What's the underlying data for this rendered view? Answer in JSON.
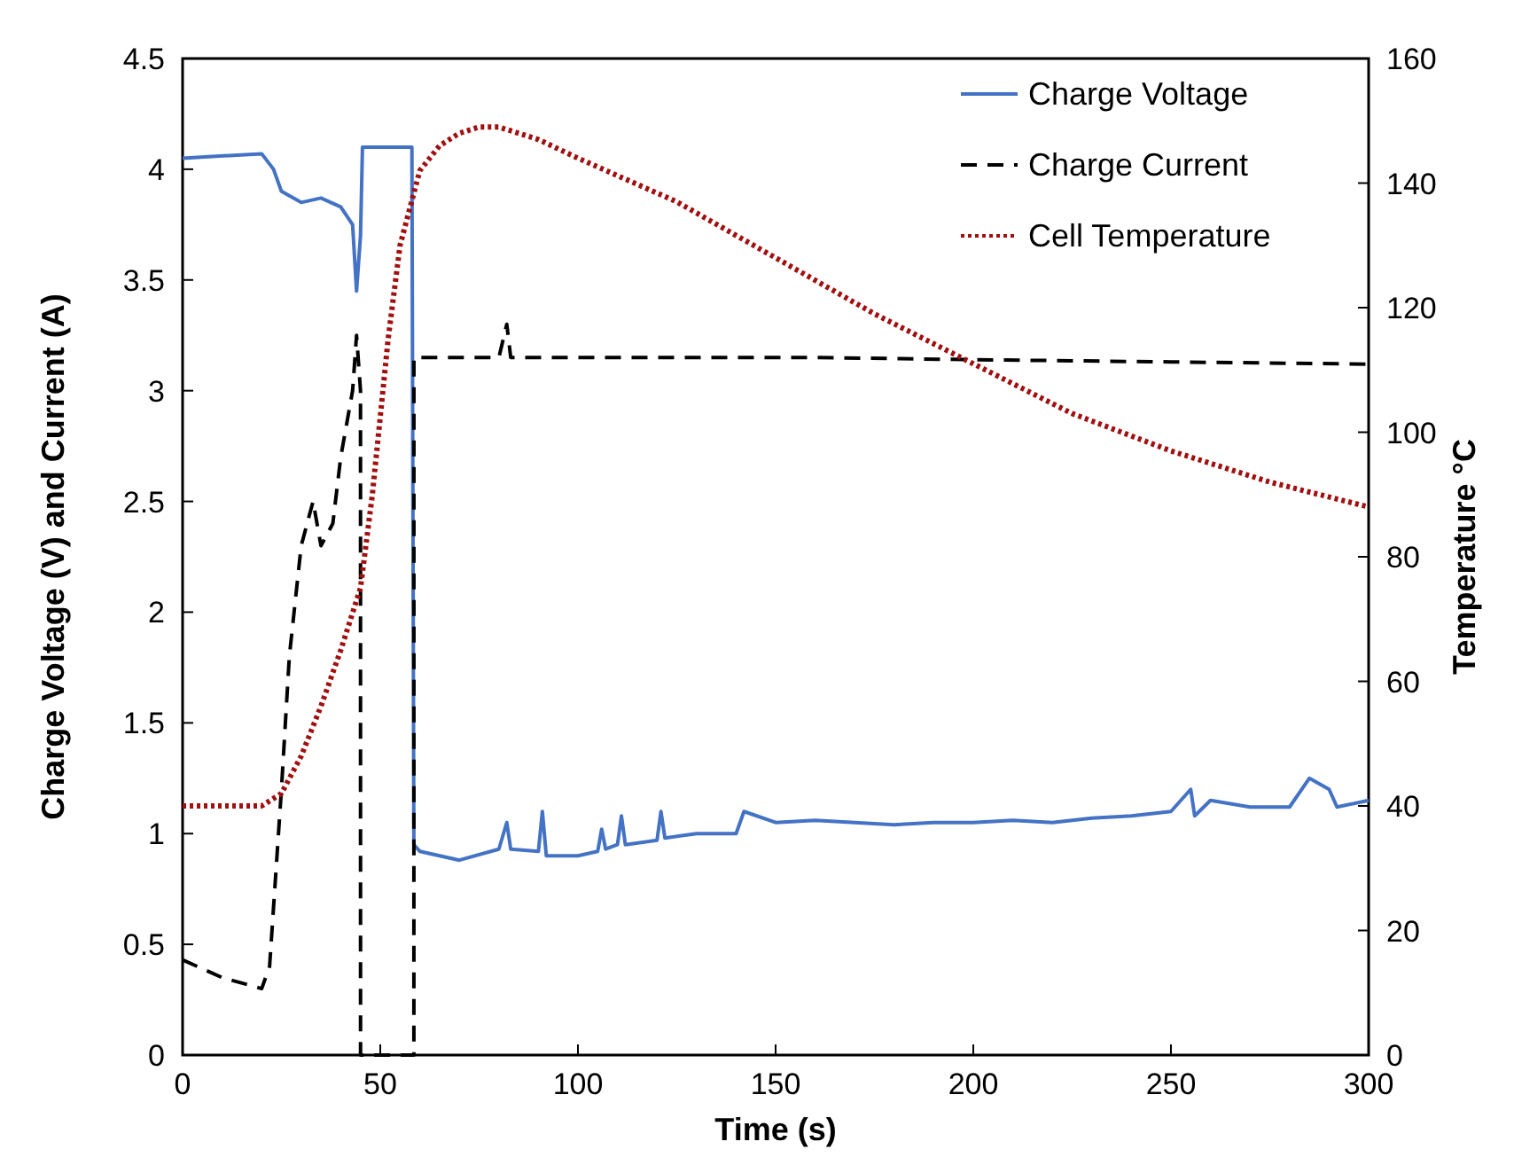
{
  "chart_data": {
    "type": "line",
    "xlabel": "Time (s)",
    "ylabel": "Charge Voltage (V) and Current (A)",
    "y2label": "Temperature °C",
    "xlim": [
      0,
      300
    ],
    "xticks": [
      0,
      50,
      100,
      150,
      200,
      250,
      300
    ],
    "ylim": [
      0,
      4.5
    ],
    "yticks": [
      0,
      0.5,
      1,
      1.5,
      2,
      2.5,
      3,
      3.5,
      4,
      4.5
    ],
    "y2lim": [
      0,
      160
    ],
    "y2ticks": [
      0,
      20,
      40,
      60,
      80,
      100,
      120,
      140,
      160
    ],
    "legend": "top right",
    "grid": false,
    "series": [
      {
        "name": "Charge Voltage",
        "color": "#4472c4",
        "line_style": "solid",
        "x": [
          0,
          20,
          23,
          25,
          30,
          35,
          40,
          43,
          44,
          45,
          45.5,
          58,
          58.5,
          60,
          70,
          80,
          82,
          83,
          90,
          91,
          92,
          100,
          105,
          106,
          107,
          110,
          111,
          112,
          120,
          121,
          122,
          130,
          140,
          142,
          150,
          160,
          170,
          180,
          190,
          200,
          210,
          220,
          230,
          240,
          250,
          255,
          256,
          260,
          270,
          280,
          285,
          290,
          292,
          300
        ],
        "values": [
          4.05,
          4.07,
          4.0,
          3.9,
          3.85,
          3.87,
          3.83,
          3.75,
          3.45,
          3.7,
          4.1,
          4.1,
          0.95,
          0.92,
          0.88,
          0.93,
          1.05,
          0.93,
          0.92,
          1.1,
          0.9,
          0.9,
          0.92,
          1.02,
          0.93,
          0.95,
          1.08,
          0.95,
          0.97,
          1.1,
          0.98,
          1.0,
          1.0,
          1.1,
          1.05,
          1.06,
          1.05,
          1.04,
          1.05,
          1.05,
          1.06,
          1.05,
          1.07,
          1.08,
          1.1,
          1.2,
          1.08,
          1.15,
          1.12,
          1.12,
          1.25,
          1.2,
          1.12,
          1.15
        ]
      },
      {
        "name": "Charge Current",
        "color": "#000000",
        "line_style": "dashed",
        "x": [
          0,
          10,
          20,
          22,
          25,
          27,
          30,
          33,
          35,
          38,
          40,
          43,
          44,
          45,
          45.01,
          58.5,
          58.51,
          80,
          82,
          83,
          120,
          160,
          200,
          250,
          300
        ],
        "values": [
          0.43,
          0.35,
          0.3,
          0.4,
          1.2,
          1.8,
          2.3,
          2.5,
          2.3,
          2.4,
          2.7,
          3.0,
          3.25,
          3.0,
          0,
          0,
          3.15,
          3.15,
          3.3,
          3.15,
          3.15,
          3.15,
          3.14,
          3.13,
          3.12
        ]
      },
      {
        "name": "Cell Temperature",
        "color": "#a01010",
        "line_style": "dotted",
        "axis": "y2",
        "x": [
          0,
          20,
          25,
          30,
          35,
          40,
          45,
          48,
          52,
          55,
          60,
          65,
          70,
          75,
          80,
          90,
          100,
          125,
          150,
          175,
          200,
          225,
          250,
          275,
          300
        ],
        "values": [
          40,
          40,
          42,
          48,
          56,
          65,
          75,
          90,
          115,
          130,
          142,
          146,
          148,
          149,
          149,
          147,
          144,
          137,
          128,
          119,
          111,
          103,
          97,
          92,
          88
        ]
      }
    ]
  }
}
